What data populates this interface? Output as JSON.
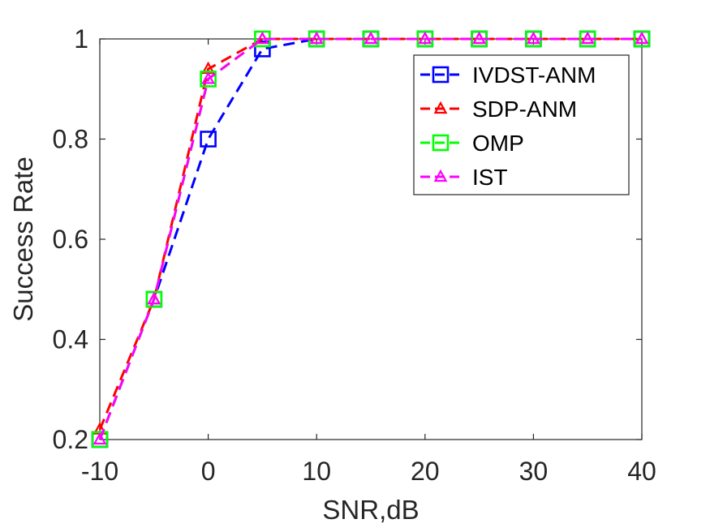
{
  "chart_data": {
    "type": "line",
    "title": "",
    "xlabel": "SNR,dB",
    "ylabel": "Success Rate",
    "xlim": [
      -10,
      40
    ],
    "ylim": [
      0.2,
      1.0
    ],
    "xticks": [
      -10,
      0,
      10,
      20,
      30,
      40
    ],
    "xtick_labels": [
      "-10",
      "0",
      "10",
      "20",
      "30",
      "40"
    ],
    "yticks": [
      0.2,
      0.4,
      0.6,
      0.8,
      1.0
    ],
    "ytick_labels": [
      "0.2",
      "0.4",
      "0.6",
      "0.8",
      "1"
    ],
    "grid": false,
    "legend_position": "top-right",
    "x": [
      -10,
      -5,
      0,
      5,
      10,
      15,
      20,
      25,
      30,
      35,
      40
    ],
    "series": [
      {
        "name": "IVDST-ANM",
        "color": "#0000ff",
        "marker": "square",
        "values": [
          0.2,
          0.48,
          0.8,
          0.98,
          1,
          1,
          1,
          1,
          1,
          1,
          1
        ]
      },
      {
        "name": "SDP-ANM",
        "color": "#ff0000",
        "marker": "triangle",
        "values": [
          0.22,
          0.48,
          0.94,
          1,
          1,
          1,
          1,
          1,
          1,
          1,
          1
        ]
      },
      {
        "name": "OMP",
        "color": "#00ff00",
        "marker": "square",
        "values": [
          0.2,
          0.48,
          0.92,
          1,
          1,
          1,
          1,
          1,
          1,
          1,
          1
        ]
      },
      {
        "name": "IST",
        "color": "#ff00ff",
        "marker": "triangle",
        "values": [
          0.2,
          0.48,
          0.92,
          1,
          1,
          1,
          1,
          1,
          1,
          1,
          1
        ]
      }
    ]
  }
}
